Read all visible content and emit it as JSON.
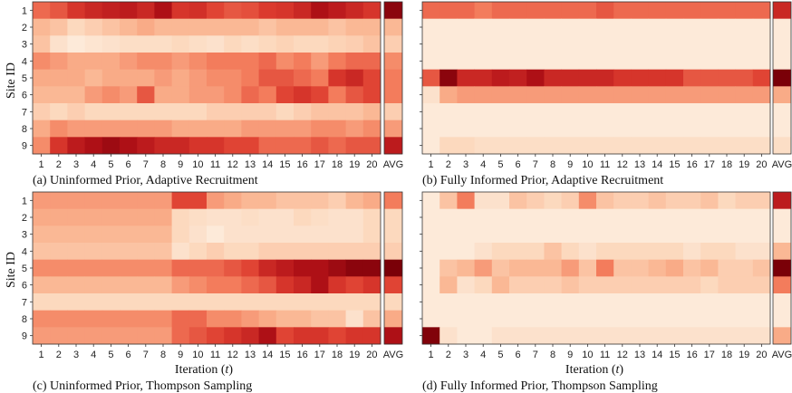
{
  "figure": {
    "ylabel": "Site ID",
    "xlabel_prefix": "Iteration (",
    "xlabel_var": "t",
    "xlabel_suffix": ")",
    "avg_label": "AVG",
    "color_low": "#fdf2e6",
    "color_high": "#7a0008"
  },
  "chart_data": [
    {
      "type": "heatmap",
      "tag": "(a)",
      "title": "Uninformed Prior, Adaptive Recruitment",
      "x": [
        "1",
        "2",
        "3",
        "4",
        "5",
        "6",
        "7",
        "8",
        "9",
        "10",
        "11",
        "12",
        "13",
        "14",
        "15",
        "16",
        "17",
        "18",
        "19",
        "20"
      ],
      "y": [
        "1",
        "2",
        "3",
        "4",
        "5",
        "6",
        "7",
        "8",
        "9"
      ],
      "vmin": 0,
      "vmax": 1,
      "values": [
        [
          0.55,
          0.6,
          0.7,
          0.75,
          0.78,
          0.8,
          0.75,
          0.85,
          0.7,
          0.72,
          0.65,
          0.6,
          0.62,
          0.68,
          0.7,
          0.75,
          0.85,
          0.8,
          0.75,
          0.7
        ],
        [
          0.3,
          0.25,
          0.15,
          0.2,
          0.25,
          0.3,
          0.35,
          0.3,
          0.3,
          0.3,
          0.3,
          0.3,
          0.3,
          0.25,
          0.3,
          0.3,
          0.3,
          0.25,
          0.3,
          0.3
        ],
        [
          0.25,
          0.1,
          0.05,
          0.08,
          0.1,
          0.12,
          0.12,
          0.12,
          0.15,
          0.12,
          0.1,
          0.15,
          0.12,
          0.15,
          0.18,
          0.15,
          0.15,
          0.18,
          0.2,
          0.25
        ],
        [
          0.45,
          0.4,
          0.35,
          0.35,
          0.35,
          0.4,
          0.45,
          0.45,
          0.4,
          0.45,
          0.5,
          0.5,
          0.5,
          0.55,
          0.45,
          0.5,
          0.4,
          0.5,
          0.55,
          0.55
        ],
        [
          0.35,
          0.35,
          0.35,
          0.3,
          0.35,
          0.35,
          0.35,
          0.4,
          0.35,
          0.4,
          0.45,
          0.45,
          0.5,
          0.6,
          0.6,
          0.55,
          0.5,
          0.7,
          0.75,
          0.65
        ],
        [
          0.3,
          0.3,
          0.3,
          0.4,
          0.45,
          0.4,
          0.6,
          0.35,
          0.35,
          0.4,
          0.4,
          0.45,
          0.55,
          0.5,
          0.65,
          0.7,
          0.65,
          0.5,
          0.6,
          0.65
        ],
        [
          0.2,
          0.15,
          0.2,
          0.15,
          0.15,
          0.15,
          0.15,
          0.15,
          0.15,
          0.15,
          0.2,
          0.2,
          0.2,
          0.2,
          0.15,
          0.2,
          0.25,
          0.25,
          0.25,
          0.3
        ],
        [
          0.35,
          0.45,
          0.4,
          0.4,
          0.4,
          0.4,
          0.4,
          0.4,
          0.35,
          0.35,
          0.35,
          0.35,
          0.4,
          0.4,
          0.4,
          0.4,
          0.45,
          0.45,
          0.4,
          0.45
        ],
        [
          0.45,
          0.7,
          0.8,
          0.85,
          0.9,
          0.85,
          0.8,
          0.75,
          0.75,
          0.7,
          0.7,
          0.65,
          0.65,
          0.55,
          0.55,
          0.55,
          0.6,
          0.55,
          0.6,
          0.6
        ]
      ],
      "avg": [
        0.95,
        0.3,
        0.2,
        0.45,
        0.5,
        0.5,
        0.2,
        0.4,
        0.8
      ]
    },
    {
      "type": "heatmap",
      "tag": "(b)",
      "title": "Fully Informed Prior, Adaptive Recruitment",
      "x": [
        "1",
        "2",
        "3",
        "4",
        "5",
        "6",
        "7",
        "8",
        "9",
        "10",
        "11",
        "12",
        "13",
        "14",
        "15",
        "16",
        "17",
        "18",
        "19",
        "20"
      ],
      "y": [
        "1",
        "2",
        "3",
        "4",
        "5",
        "6",
        "7",
        "8",
        "9"
      ],
      "vmin": 0,
      "vmax": 1,
      "values": [
        [
          0.55,
          0.55,
          0.55,
          0.5,
          0.55,
          0.55,
          0.55,
          0.55,
          0.55,
          0.55,
          0.6,
          0.55,
          0.55,
          0.55,
          0.55,
          0.55,
          0.55,
          0.55,
          0.55,
          0.55
        ],
        [
          0.05,
          0.05,
          0.05,
          0.05,
          0.05,
          0.05,
          0.05,
          0.05,
          0.05,
          0.05,
          0.05,
          0.05,
          0.05,
          0.05,
          0.05,
          0.05,
          0.05,
          0.05,
          0.05,
          0.05
        ],
        [
          0.05,
          0.05,
          0.05,
          0.05,
          0.05,
          0.05,
          0.05,
          0.05,
          0.05,
          0.05,
          0.05,
          0.05,
          0.05,
          0.05,
          0.05,
          0.05,
          0.05,
          0.05,
          0.05,
          0.05
        ],
        [
          0.05,
          0.05,
          0.05,
          0.05,
          0.05,
          0.05,
          0.05,
          0.05,
          0.05,
          0.05,
          0.05,
          0.05,
          0.05,
          0.05,
          0.05,
          0.05,
          0.05,
          0.05,
          0.05,
          0.05
        ],
        [
          0.6,
          0.95,
          0.75,
          0.75,
          0.8,
          0.78,
          0.85,
          0.75,
          0.75,
          0.75,
          0.75,
          0.7,
          0.7,
          0.7,
          0.7,
          0.6,
          0.6,
          0.6,
          0.6,
          0.65
        ],
        [
          0.1,
          0.35,
          0.4,
          0.4,
          0.4,
          0.4,
          0.4,
          0.4,
          0.4,
          0.4,
          0.4,
          0.4,
          0.4,
          0.4,
          0.4,
          0.4,
          0.4,
          0.4,
          0.4,
          0.4
        ],
        [
          0.05,
          0.05,
          0.05,
          0.05,
          0.05,
          0.05,
          0.05,
          0.05,
          0.05,
          0.05,
          0.05,
          0.05,
          0.05,
          0.05,
          0.05,
          0.05,
          0.05,
          0.05,
          0.05,
          0.05
        ],
        [
          0.05,
          0.05,
          0.05,
          0.05,
          0.05,
          0.05,
          0.05,
          0.05,
          0.05,
          0.05,
          0.05,
          0.05,
          0.05,
          0.05,
          0.05,
          0.05,
          0.05,
          0.05,
          0.05,
          0.05
        ],
        [
          0.05,
          0.15,
          0.15,
          0.12,
          0.12,
          0.12,
          0.12,
          0.12,
          0.12,
          0.12,
          0.12,
          0.12,
          0.12,
          0.12,
          0.12,
          0.12,
          0.12,
          0.12,
          0.12,
          0.12
        ]
      ],
      "avg": [
        0.75,
        0.05,
        0.05,
        0.05,
        1.0,
        0.35,
        0.05,
        0.05,
        0.12
      ]
    },
    {
      "type": "heatmap",
      "tag": "(c)",
      "title": "Uninformed Prior, Thompson Sampling",
      "x": [
        "1",
        "2",
        "3",
        "4",
        "5",
        "6",
        "7",
        "8",
        "9",
        "10",
        "11",
        "12",
        "13",
        "14",
        "15",
        "16",
        "17",
        "18",
        "19",
        "20"
      ],
      "y": [
        "1",
        "2",
        "3",
        "4",
        "5",
        "6",
        "7",
        "8",
        "9"
      ],
      "vmin": 0,
      "vmax": 1,
      "values": [
        [
          0.4,
          0.4,
          0.4,
          0.4,
          0.4,
          0.4,
          0.4,
          0.4,
          0.65,
          0.65,
          0.4,
          0.35,
          0.3,
          0.3,
          0.25,
          0.25,
          0.25,
          0.2,
          0.3,
          0.35
        ],
        [
          0.35,
          0.35,
          0.35,
          0.35,
          0.35,
          0.35,
          0.35,
          0.35,
          0.15,
          0.12,
          0.1,
          0.1,
          0.12,
          0.1,
          0.1,
          0.15,
          0.12,
          0.1,
          0.1,
          0.15
        ],
        [
          0.3,
          0.3,
          0.3,
          0.3,
          0.3,
          0.3,
          0.3,
          0.3,
          0.15,
          0.1,
          0.05,
          0.1,
          0.1,
          0.1,
          0.1,
          0.1,
          0.1,
          0.1,
          0.1,
          0.15
        ],
        [
          0.25,
          0.25,
          0.25,
          0.25,
          0.25,
          0.25,
          0.25,
          0.25,
          0.1,
          0.15,
          0.2,
          0.15,
          0.15,
          0.2,
          0.2,
          0.2,
          0.2,
          0.2,
          0.2,
          0.2
        ],
        [
          0.45,
          0.45,
          0.45,
          0.45,
          0.45,
          0.45,
          0.45,
          0.45,
          0.55,
          0.55,
          0.55,
          0.6,
          0.65,
          0.75,
          0.8,
          0.85,
          0.85,
          0.9,
          0.95,
          0.95
        ],
        [
          0.3,
          0.3,
          0.3,
          0.3,
          0.3,
          0.3,
          0.3,
          0.3,
          0.4,
          0.45,
          0.5,
          0.5,
          0.55,
          0.6,
          0.7,
          0.75,
          0.85,
          0.7,
          0.65,
          0.7
        ],
        [
          0.15,
          0.15,
          0.15,
          0.15,
          0.15,
          0.15,
          0.15,
          0.15,
          0.15,
          0.15,
          0.15,
          0.15,
          0.15,
          0.15,
          0.15,
          0.15,
          0.15,
          0.15,
          0.15,
          0.15
        ],
        [
          0.45,
          0.45,
          0.45,
          0.45,
          0.45,
          0.45,
          0.45,
          0.45,
          0.55,
          0.55,
          0.45,
          0.45,
          0.4,
          0.35,
          0.3,
          0.3,
          0.25,
          0.25,
          0.1,
          0.25
        ],
        [
          0.4,
          0.4,
          0.4,
          0.4,
          0.4,
          0.4,
          0.4,
          0.4,
          0.55,
          0.6,
          0.65,
          0.7,
          0.75,
          0.85,
          0.65,
          0.7,
          0.7,
          0.65,
          0.7,
          0.7
        ]
      ],
      "avg": [
        0.5,
        0.15,
        0.15,
        0.2,
        1.0,
        0.65,
        0.15,
        0.35,
        0.85
      ]
    },
    {
      "type": "heatmap",
      "tag": "(d)",
      "title": "Fully Informed Prior, Thompson Sampling",
      "x": [
        "1",
        "2",
        "3",
        "4",
        "5",
        "6",
        "7",
        "8",
        "9",
        "10",
        "11",
        "12",
        "13",
        "14",
        "15",
        "16",
        "17",
        "18",
        "19",
        "20"
      ],
      "y": [
        "1",
        "2",
        "3",
        "4",
        "5",
        "6",
        "7",
        "8",
        "9"
      ],
      "vmin": 0,
      "vmax": 1,
      "values": [
        [
          0.05,
          0.25,
          0.5,
          0.1,
          0.1,
          0.25,
          0.2,
          0.15,
          0.2,
          0.45,
          0.25,
          0.2,
          0.2,
          0.25,
          0.2,
          0.2,
          0.25,
          0.15,
          0.2,
          0.2
        ],
        [
          0.05,
          0.05,
          0.05,
          0.05,
          0.05,
          0.05,
          0.05,
          0.05,
          0.05,
          0.05,
          0.05,
          0.05,
          0.05,
          0.05,
          0.05,
          0.05,
          0.05,
          0.05,
          0.05,
          0.05
        ],
        [
          0.05,
          0.05,
          0.05,
          0.05,
          0.05,
          0.05,
          0.05,
          0.05,
          0.05,
          0.05,
          0.05,
          0.05,
          0.05,
          0.05,
          0.05,
          0.05,
          0.05,
          0.05,
          0.05,
          0.05
        ],
        [
          0.05,
          0.05,
          0.05,
          0.1,
          0.15,
          0.15,
          0.15,
          0.25,
          0.15,
          0.1,
          0.15,
          0.15,
          0.15,
          0.15,
          0.15,
          0.1,
          0.15,
          0.15,
          0.1,
          0.1
        ],
        [
          0.05,
          0.25,
          0.3,
          0.4,
          0.25,
          0.3,
          0.3,
          0.3,
          0.4,
          0.25,
          0.5,
          0.25,
          0.25,
          0.3,
          0.35,
          0.25,
          0.3,
          0.2,
          0.2,
          0.25
        ],
        [
          0.05,
          0.3,
          0.1,
          0.15,
          0.3,
          0.2,
          0.2,
          0.2,
          0.25,
          0.2,
          0.2,
          0.2,
          0.2,
          0.2,
          0.2,
          0.2,
          0.15,
          0.2,
          0.2,
          0.2
        ],
        [
          0.05,
          0.05,
          0.05,
          0.05,
          0.05,
          0.05,
          0.05,
          0.05,
          0.05,
          0.05,
          0.05,
          0.05,
          0.05,
          0.05,
          0.05,
          0.05,
          0.05,
          0.05,
          0.05,
          0.05
        ],
        [
          0.05,
          0.05,
          0.05,
          0.05,
          0.05,
          0.05,
          0.05,
          0.05,
          0.05,
          0.05,
          0.05,
          0.05,
          0.05,
          0.05,
          0.05,
          0.05,
          0.05,
          0.05,
          0.05,
          0.05
        ],
        [
          0.98,
          0.1,
          0.05,
          0.05,
          0.1,
          0.1,
          0.1,
          0.1,
          0.1,
          0.1,
          0.1,
          0.1,
          0.1,
          0.1,
          0.1,
          0.1,
          0.1,
          0.1,
          0.1,
          0.1
        ]
      ],
      "avg": [
        0.8,
        0.05,
        0.05,
        0.3,
        1.0,
        0.5,
        0.05,
        0.05,
        0.35
      ]
    }
  ]
}
